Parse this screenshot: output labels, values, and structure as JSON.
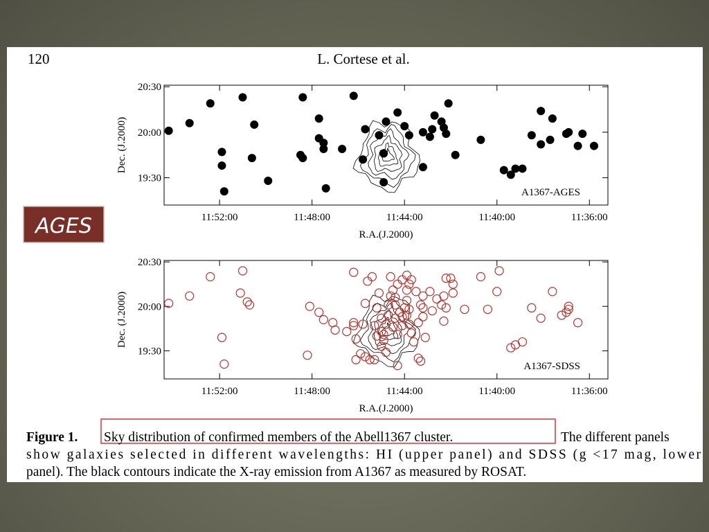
{
  "header": {
    "page_number": "120",
    "authors": "L. Cortese et al."
  },
  "side_label": "AGES",
  "caption": {
    "label": "Figure 1.",
    "highlight": "Sky distribution of confirmed members of the Abell1367 cluster.",
    "line1_rest": "The different panels",
    "line2": "show galaxies selected in different wavelengths: HI (upper panel) and SDSS (g <17 mag, lower",
    "line3": "panel). The black contours indicate the X-ray emission from A1367 as measured by ROSAT."
  },
  "chart_data": [
    {
      "type": "scatter",
      "annotation": "A1367-AGES",
      "xlabel": "R.A.(J.2000)",
      "ylabel": "Dec. (J.2000)",
      "color": "#000000",
      "marker": "filled",
      "xlim": [
        714.4,
        695.2
      ],
      "ylim": [
        1152,
        1231
      ],
      "xticks": [
        {
          "value": 712,
          "label": "11:52:00"
        },
        {
          "value": 708,
          "label": "11:48:00"
        },
        {
          "value": 704,
          "label": "11:44:00"
        },
        {
          "value": 700,
          "label": "11:40:00"
        },
        {
          "value": 696,
          "label": "11:36:00"
        }
      ],
      "yticks": [
        {
          "value": 1230,
          "label": "20:30"
        },
        {
          "value": 1200,
          "label": "20:00"
        },
        {
          "value": 1170,
          "label": "19:30"
        }
      ],
      "x": [
        714.2,
        713.3,
        712.4,
        711.9,
        711.9,
        711.8,
        711.0,
        710.5,
        710.6,
        709.9,
        708.4,
        708.5,
        708.4,
        707.7,
        707.7,
        707.5,
        707.5,
        707.4,
        706.7,
        706.2,
        705.7,
        705.8,
        705.1,
        704.9,
        704.9,
        704.8,
        704.3,
        704.0,
        703.8,
        703.2,
        703.2,
        702.9,
        702.8,
        702.7,
        702.4,
        702.3,
        702.2,
        702.1,
        701.8,
        700.7,
        699.7,
        699.4,
        699.2,
        698.9,
        698.5,
        698.1,
        698.1,
        697.7,
        697.6,
        697.0,
        696.9,
        696.5,
        696.3,
        695.8
      ],
      "values": [
        1201,
        1206,
        1219,
        1187,
        1178,
        1161,
        1223,
        1205,
        1183,
        1168,
        1223,
        1185,
        1183,
        1209,
        1196,
        1193,
        1189,
        1163,
        1189,
        1224,
        1202,
        1182,
        1198,
        1186,
        1167,
        1207,
        1213,
        1204,
        1198,
        1177,
        1200,
        1197,
        1202,
        1211,
        1207,
        1203,
        1199,
        1219,
        1185,
        1195,
        1175,
        1172,
        1176,
        1176,
        1198,
        1214,
        1192,
        1195,
        1209,
        1199,
        1200,
        1191,
        1199,
        1191
      ]
    },
    {
      "type": "scatter",
      "annotation": "A1367-SDSS",
      "xlabel": "R.A.(J.2000)",
      "ylabel": "Dec. (J.2000)",
      "color": "#c0302a",
      "marker": "open",
      "xlim": [
        714.4,
        695.2
      ],
      "ylim": [
        1151,
        1231
      ],
      "xticks": [
        {
          "value": 712,
          "label": "11:52:00"
        },
        {
          "value": 708,
          "label": "11:48:00"
        },
        {
          "value": 704,
          "label": "11:44:00"
        },
        {
          "value": 700,
          "label": "11:40:00"
        },
        {
          "value": 696,
          "label": "11:36:00"
        }
      ],
      "yticks": [
        {
          "value": 1230,
          "label": "20:30"
        },
        {
          "value": 1200,
          "label": "20:00"
        },
        {
          "value": 1170,
          "label": "19:30"
        }
      ],
      "x": [
        714.2,
        713.3,
        712.4,
        711.9,
        711.8,
        711.1,
        711.0,
        710.8,
        710.7,
        708.2,
        708.1,
        707.7,
        707.5,
        707.1,
        707.0,
        706.5,
        706.2,
        706.2,
        706.2,
        706.1,
        706.1,
        705.9,
        705.8,
        705.7,
        705.7,
        705.6,
        705.5,
        705.4,
        705.3,
        705.3,
        705.2,
        705.2,
        705.1,
        705.0,
        705.0,
        705.0,
        704.9,
        704.9,
        704.8,
        704.8,
        704.7,
        704.7,
        704.6,
        704.6,
        704.5,
        704.5,
        704.4,
        704.4,
        704.4,
        704.3,
        704.3,
        704.3,
        704.2,
        704.1,
        704.1,
        704.1,
        704.0,
        703.9,
        703.9,
        703.9,
        703.9,
        703.8,
        703.8,
        703.8,
        703.7,
        703.7,
        703.6,
        703.5,
        703.4,
        703.4,
        703.3,
        703.3,
        703.2,
        703.2,
        703.2,
        703.1,
        702.9,
        702.8,
        702.6,
        702.4,
        702.3,
        702.3,
        702.2,
        702.2,
        702.0,
        701.9,
        701.9,
        701.4,
        700.7,
        700.4,
        700.0,
        699.9,
        699.4,
        699.2,
        698.9,
        698.5,
        698.1,
        697.6,
        697.2,
        697.0,
        696.9,
        696.9,
        696.5
      ],
      "values": [
        1202,
        1207,
        1220,
        1179,
        1161,
        1209,
        1224,
        1203,
        1201,
        1167,
        1200,
        1196,
        1191,
        1189,
        1184,
        1183,
        1223,
        1189,
        1187,
        1178,
        1164,
        1168,
        1188,
        1202,
        1166,
        1217,
        1164,
        1220,
        1164,
        1187,
        1180,
        1199,
        1209,
        1173,
        1192,
        1183,
        1181,
        1177,
        1169,
        1188,
        1194,
        1201,
        1207,
        1220,
        1186,
        1211,
        1201,
        1192,
        1206,
        1215,
        1181,
        1160,
        1196,
        1187,
        1218,
        1193,
        1199,
        1204,
        1211,
        1194,
        1221,
        1188,
        1215,
        1198,
        1218,
        1182,
        1176,
        1210,
        1165,
        1189,
        1163,
        1201,
        1207,
        1199,
        1193,
        1179,
        1210,
        1197,
        1205,
        1201,
        1207,
        1190,
        1199,
        1219,
        1219,
        1215,
        1209,
        1198,
        1220,
        1198,
        1210,
        1224,
        1172,
        1174,
        1176,
        1199,
        1192,
        1210,
        1194,
        1196,
        1200,
        1198,
        1189
      ]
    }
  ]
}
